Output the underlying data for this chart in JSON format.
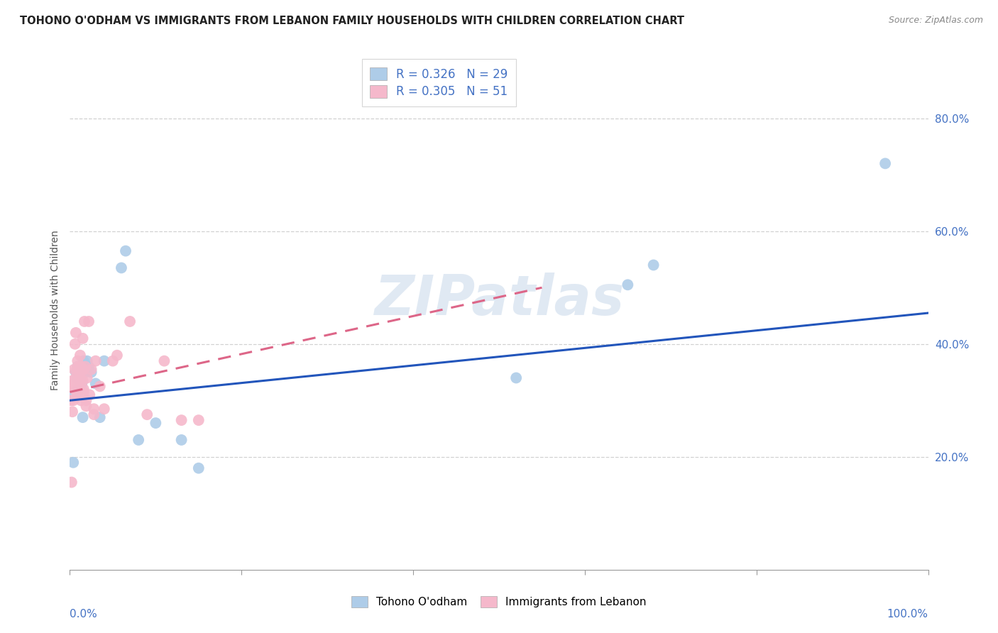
{
  "title": "TOHONO O'ODHAM VS IMMIGRANTS FROM LEBANON FAMILY HOUSEHOLDS WITH CHILDREN CORRELATION CHART",
  "source": "Source: ZipAtlas.com",
  "ylabel": "Family Households with Children",
  "xlim": [
    0,
    1.0
  ],
  "ylim": [
    0,
    0.92
  ],
  "yticks": [
    0.2,
    0.4,
    0.6,
    0.8
  ],
  "ytick_labels": [
    "20.0%",
    "40.0%",
    "60.0%",
    "80.0%"
  ],
  "xtick_left_label": "0.0%",
  "xtick_right_label": "100.0%",
  "legend_labels": [
    "Tohono O'odham",
    "Immigrants from Lebanon"
  ],
  "blue_R": "0.326",
  "blue_N": "29",
  "pink_R": "0.305",
  "pink_N": "51",
  "blue_color": "#aecce8",
  "pink_color": "#f5b8cb",
  "blue_line_color": "#2255bb",
  "pink_line_color": "#dd6688",
  "watermark": "ZIPatlas",
  "blue_points_x": [
    0.004,
    0.006,
    0.007,
    0.008,
    0.009,
    0.01,
    0.011,
    0.012,
    0.013,
    0.014,
    0.015,
    0.016,
    0.018,
    0.02,
    0.022,
    0.025,
    0.03,
    0.035,
    0.04,
    0.06,
    0.065,
    0.08,
    0.1,
    0.13,
    0.15,
    0.52,
    0.65,
    0.68,
    0.95
  ],
  "blue_points_y": [
    0.19,
    0.31,
    0.35,
    0.34,
    0.36,
    0.32,
    0.36,
    0.34,
    0.35,
    0.33,
    0.27,
    0.37,
    0.35,
    0.37,
    0.36,
    0.35,
    0.33,
    0.27,
    0.37,
    0.535,
    0.565,
    0.23,
    0.26,
    0.23,
    0.18,
    0.34,
    0.505,
    0.54,
    0.72
  ],
  "pink_points_x": [
    0.001,
    0.002,
    0.003,
    0.004,
    0.005,
    0.005,
    0.006,
    0.006,
    0.007,
    0.007,
    0.008,
    0.008,
    0.009,
    0.01,
    0.01,
    0.011,
    0.012,
    0.012,
    0.013,
    0.014,
    0.015,
    0.015,
    0.016,
    0.016,
    0.017,
    0.018,
    0.019,
    0.02,
    0.022,
    0.025,
    0.028,
    0.03,
    0.035,
    0.04,
    0.05,
    0.055,
    0.07,
    0.09,
    0.11,
    0.13,
    0.15,
    0.003,
    0.005,
    0.007,
    0.009,
    0.011,
    0.013,
    0.016,
    0.019,
    0.023,
    0.028
  ],
  "pink_points_y": [
    0.3,
    0.155,
    0.28,
    0.3,
    0.355,
    0.32,
    0.32,
    0.4,
    0.34,
    0.42,
    0.32,
    0.355,
    0.37,
    0.335,
    0.36,
    0.34,
    0.35,
    0.38,
    0.36,
    0.355,
    0.335,
    0.41,
    0.355,
    0.315,
    0.44,
    0.36,
    0.3,
    0.34,
    0.44,
    0.355,
    0.275,
    0.37,
    0.325,
    0.285,
    0.37,
    0.38,
    0.44,
    0.275,
    0.37,
    0.265,
    0.265,
    0.335,
    0.33,
    0.32,
    0.31,
    0.33,
    0.3,
    0.32,
    0.29,
    0.31,
    0.285
  ],
  "blue_line_x0": 0.0,
  "blue_line_y0": 0.3,
  "blue_line_x1": 1.0,
  "blue_line_y1": 0.455,
  "pink_line_x0": 0.0,
  "pink_line_y0": 0.315,
  "pink_line_x1": 0.55,
  "pink_line_y1": 0.5
}
